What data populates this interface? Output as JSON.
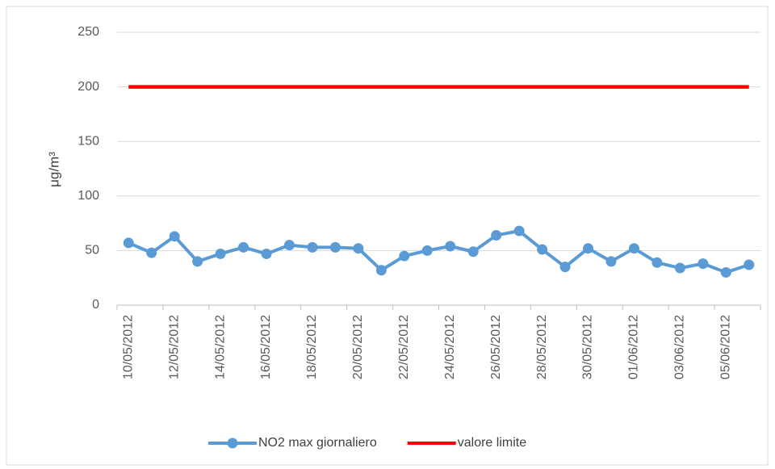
{
  "chart_data": {
    "type": "line",
    "y_label": "μg/m³",
    "categories": [
      "10/05/2012",
      null,
      "12/05/2012",
      null,
      "14/05/2012",
      null,
      "16/05/2012",
      null,
      "18/05/2012",
      null,
      "20/05/2012",
      null,
      "22/05/2012",
      null,
      "24/05/2012",
      null,
      "26/05/2012",
      null,
      "28/05/2012",
      null,
      "30/05/2012",
      null,
      "01/06/2012",
      null,
      "03/06/2012",
      null,
      "05/06/2012",
      null
    ],
    "series": [
      {
        "name": "NO2 max giornaliero",
        "color": "#5b9bd5",
        "marker": true,
        "values": [
          57,
          48,
          63,
          40,
          47,
          53,
          47,
          55,
          53,
          53,
          52,
          32,
          45,
          50,
          54,
          49,
          64,
          68,
          51,
          35,
          52,
          40,
          52,
          39,
          34,
          38,
          30,
          37
        ]
      },
      {
        "name": "valore limite",
        "color": "#ff0000",
        "marker": false,
        "values": [
          200,
          200,
          200,
          200,
          200,
          200,
          200,
          200,
          200,
          200,
          200,
          200,
          200,
          200,
          200,
          200,
          200,
          200,
          200,
          200,
          200,
          200,
          200,
          200,
          200,
          200,
          200,
          200
        ]
      }
    ],
    "ylim": [
      0,
      250
    ],
    "yticks": [
      0,
      50,
      100,
      150,
      200,
      250
    ],
    "grid": true,
    "legend": "bottom"
  }
}
